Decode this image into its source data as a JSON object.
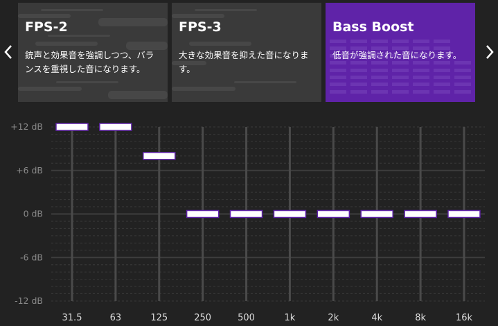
{
  "presets": [
    {
      "title": "FPS-2",
      "description": "銃声と効果音を強調しつつ、バランスを重視した音になります。",
      "selected": false
    },
    {
      "title": "FPS-3",
      "description": "大きな効果音を抑えた音になります。",
      "selected": false
    },
    {
      "title": "Bass Boost",
      "description": "低音が強調された音になります。",
      "selected": true
    }
  ],
  "nav": {
    "prev_icon": "chevron-left-icon",
    "next_icon": "chevron-right-icon"
  },
  "colors": {
    "accent": "#5f23a8",
    "card": "#3a3a3a",
    "background": "#222222",
    "thumb": "#ffffff"
  },
  "chart_data": {
    "type": "equalizer",
    "ylim": [
      -12,
      12
    ],
    "y_ticks": [
      "+12 dB",
      "+6 dB",
      "0 dB",
      "-6 dB",
      "-12 dB"
    ],
    "y_tick_values": [
      12,
      6,
      0,
      -6,
      -12
    ],
    "categories": [
      "31.5",
      "63",
      "125",
      "250",
      "500",
      "1k",
      "2k",
      "4k",
      "8k",
      "16k"
    ],
    "values": [
      12,
      12,
      8,
      0,
      0,
      0,
      0,
      0,
      0,
      0
    ],
    "unit": "dB",
    "grid": true
  }
}
